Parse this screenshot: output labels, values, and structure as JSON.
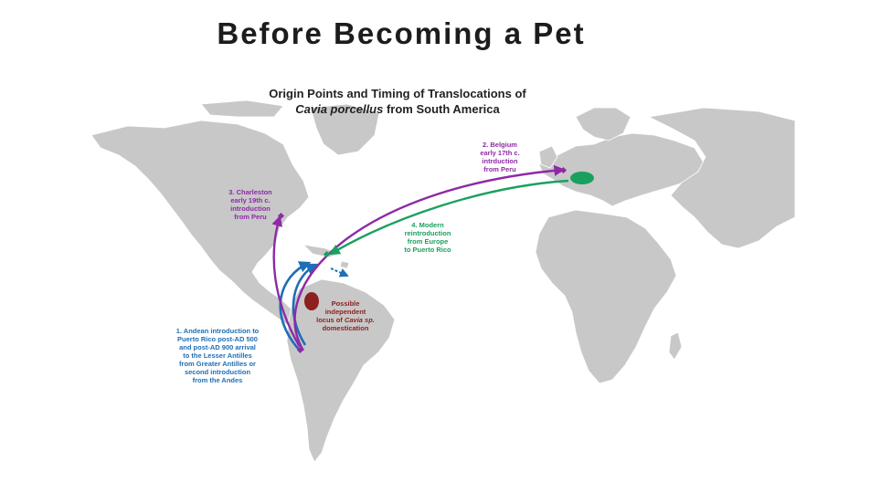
{
  "slide": {
    "title": "Before Becoming a Pet"
  },
  "map": {
    "title_line1": "Origin Points and Timing of Translocations of",
    "title_species": "Cavia porcellus",
    "title_rest": " from South America"
  },
  "annotations": {
    "belgium": [
      "2. Belgium",
      "early 17th c.",
      "intrduction",
      "from Peru"
    ],
    "charleston": [
      "3. Charleston",
      "early 19th c.",
      "introduction",
      "from Peru"
    ],
    "modern": [
      "4. Modern",
      "reintroduction",
      "from Europe",
      "to Puerto Rico"
    ],
    "andean": [
      "1. Andean introduction to",
      "Puerto Rico post-AD 500",
      "and post-AD 900 arrival",
      "to the Lesser Antilles",
      "from Greater Antilles or",
      "second introduction",
      "from the Andes"
    ],
    "independent": {
      "line1": "Possible",
      "line2": "independent",
      "line3_prefix": "locus of ",
      "line3_species": "Cavia sp.",
      "line4": "domestication"
    }
  },
  "colors": {
    "land": "#c8c8c8",
    "border": "#ffffff",
    "purple_route": "#8e2aa6",
    "green_route": "#1aa05e",
    "blue_route": "#1e6fb6",
    "domestication_locus": "#8c1f1f"
  }
}
